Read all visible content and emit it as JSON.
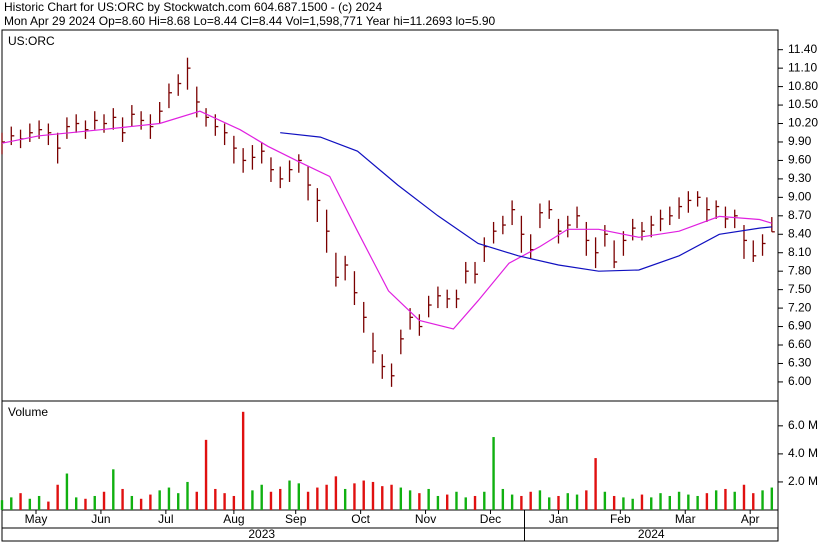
{
  "chart_data": {
    "type": "ohlc",
    "title": "Historic Chart for US:ORC by Stockwatch.com 604.687.1500 - (c) 2024",
    "subtitle": "Mon Apr 29 2024  Op=8.60  Hi=8.68  Lo=8.44  Cl=8.44  Vol=1,598,771  Year hi=11.2693  lo=5.90",
    "label": "US:ORC",
    "x": [
      0,
      3,
      6,
      9,
      12,
      15,
      18,
      21,
      24,
      27,
      30,
      33,
      36,
      39,
      42,
      45,
      48,
      51,
      54,
      57,
      60,
      63,
      66,
      69,
      72,
      75,
      78,
      81,
      84,
      87,
      90,
      93,
      96,
      99,
      102,
      105,
      108,
      111,
      114,
      117,
      120,
      123,
      126,
      129,
      132,
      135,
      138,
      141,
      144,
      147,
      150,
      153,
      156,
      159,
      162,
      165,
      168,
      171,
      174,
      177,
      180,
      183,
      186,
      189,
      192,
      195,
      198,
      201,
      204,
      207,
      210,
      213,
      216,
      219,
      222,
      225,
      228,
      231,
      234,
      237,
      240,
      243,
      246,
      249
    ],
    "xlim": [
      0,
      251
    ],
    "xticks": [
      {
        "value": 11,
        "label": "May"
      },
      {
        "value": 32,
        "label": "Jun"
      },
      {
        "value": 53,
        "label": "Jul"
      },
      {
        "value": 75,
        "label": "Aug"
      },
      {
        "value": 95,
        "label": "Sep"
      },
      {
        "value": 116,
        "label": "Oct"
      },
      {
        "value": 137,
        "label": "Nov"
      },
      {
        "value": 158,
        "label": "Dec"
      },
      {
        "value": 180,
        "label": "Jan"
      },
      {
        "value": 200,
        "label": "Feb"
      },
      {
        "value": 221,
        "label": "Mar"
      },
      {
        "value": 242,
        "label": "Apr"
      }
    ],
    "years": [
      {
        "value": 84,
        "label": "2023"
      },
      {
        "value": 210,
        "label": "2024"
      }
    ],
    "year_divider": 169,
    "ylim": [
      5.69,
      11.72
    ],
    "yticks": [
      {
        "value": 6.0,
        "label": "6.00"
      },
      {
        "value": 6.3,
        "label": "6.30"
      },
      {
        "value": 6.6,
        "label": "6.60"
      },
      {
        "value": 6.9,
        "label": "6.90"
      },
      {
        "value": 7.2,
        "label": "7.20"
      },
      {
        "value": 7.5,
        "label": "7.50"
      },
      {
        "value": 7.8,
        "label": "7.80"
      },
      {
        "value": 8.1,
        "label": "8.10"
      },
      {
        "value": 8.4,
        "label": "8.40"
      },
      {
        "value": 8.7,
        "label": "8.70"
      },
      {
        "value": 9.0,
        "label": "9.00"
      },
      {
        "value": 9.3,
        "label": "9.30"
      },
      {
        "value": 9.6,
        "label": "9.60"
      },
      {
        "value": 9.9,
        "label": "9.90"
      },
      {
        "value": 10.2,
        "label": "10.20"
      },
      {
        "value": 10.5,
        "label": "10.50"
      },
      {
        "value": 10.8,
        "label": "10.80"
      },
      {
        "value": 11.1,
        "label": "11.10"
      },
      {
        "value": 11.4,
        "label": "11.40"
      }
    ],
    "bar_color": "#7a0000",
    "high": [
      10.05,
      10.15,
      10.1,
      10.2,
      10.25,
      10.2,
      10.05,
      10.3,
      10.35,
      10.25,
      10.4,
      10.35,
      10.45,
      10.3,
      10.5,
      10.4,
      10.35,
      10.55,
      10.85,
      11.0,
      11.27,
      10.8,
      10.45,
      10.35,
      10.2,
      10.0,
      9.8,
      9.85,
      9.9,
      9.65,
      9.5,
      9.6,
      9.7,
      9.5,
      9.15,
      8.8,
      8.1,
      8.05,
      7.8,
      7.3,
      6.8,
      6.45,
      6.3,
      6.85,
      7.2,
      7.1,
      7.4,
      7.55,
      7.5,
      7.5,
      7.95,
      7.95,
      8.35,
      8.6,
      8.7,
      8.95,
      8.7,
      8.4,
      8.9,
      8.95,
      8.65,
      8.7,
      8.85,
      8.6,
      8.35,
      8.55,
      8.3,
      8.45,
      8.65,
      8.6,
      8.7,
      8.8,
      8.85,
      9.0,
      9.1,
      9.1,
      9.0,
      8.95,
      8.85,
      8.8,
      8.55,
      8.3,
      8.4,
      8.68
    ],
    "low": [
      9.7,
      9.85,
      9.8,
      9.9,
      9.95,
      9.85,
      9.55,
      9.95,
      10.05,
      9.95,
      10.1,
      10.05,
      10.1,
      9.9,
      10.15,
      10.1,
      9.95,
      10.2,
      10.45,
      10.65,
      10.75,
      10.3,
      10.15,
      10.0,
      9.85,
      9.55,
      9.4,
      9.45,
      9.55,
      9.25,
      9.15,
      9.25,
      9.4,
      8.95,
      8.6,
      8.1,
      7.55,
      7.65,
      7.25,
      6.8,
      6.3,
      6.05,
      5.92,
      6.45,
      6.85,
      6.75,
      7.05,
      7.2,
      7.2,
      7.2,
      7.6,
      7.6,
      7.95,
      8.25,
      8.4,
      8.55,
      8.1,
      8.0,
      8.5,
      8.65,
      8.25,
      8.35,
      8.5,
      8.05,
      7.85,
      8.2,
      7.85,
      8.05,
      8.3,
      8.3,
      8.35,
      8.45,
      8.55,
      8.65,
      8.75,
      8.85,
      8.6,
      8.65,
      8.5,
      8.5,
      8.0,
      7.95,
      8.05,
      8.44
    ],
    "close": [
      9.9,
      10.0,
      9.95,
      10.05,
      10.1,
      10.05,
      9.8,
      10.15,
      10.2,
      10.1,
      10.25,
      10.2,
      10.3,
      10.05,
      10.35,
      10.25,
      10.15,
      10.4,
      10.7,
      10.85,
      11.1,
      10.55,
      10.3,
      10.15,
      10.05,
      9.8,
      9.6,
      9.65,
      9.75,
      9.45,
      9.3,
      9.45,
      9.6,
      9.2,
      8.95,
      8.45,
      7.7,
      7.9,
      7.45,
      7.05,
      6.5,
      6.25,
      6.1,
      6.7,
      7.05,
      6.9,
      7.25,
      7.4,
      7.35,
      7.35,
      7.8,
      7.75,
      8.2,
      8.45,
      8.55,
      8.8,
      8.4,
      8.15,
      8.75,
      8.8,
      8.45,
      8.55,
      8.7,
      8.3,
      8.1,
      8.4,
      7.95,
      8.3,
      8.5,
      8.45,
      8.55,
      8.65,
      8.7,
      8.85,
      8.95,
      9.0,
      8.8,
      8.85,
      8.65,
      8.7,
      8.3,
      8.05,
      8.25,
      8.44
    ],
    "lines": [
      {
        "color": "#e020e0",
        "x": [
          0,
          12,
          32,
          51,
          64,
          77,
          86,
          96,
          106,
          115,
          125,
          135,
          146,
          154,
          164,
          174,
          183,
          193,
          206,
          219,
          232,
          245,
          249
        ],
        "values": [
          9.88,
          10.0,
          10.1,
          10.2,
          10.4,
          10.1,
          9.83,
          9.58,
          9.34,
          8.45,
          7.48,
          7.0,
          6.86,
          7.32,
          7.93,
          8.2,
          8.48,
          8.48,
          8.35,
          8.45,
          8.69,
          8.64,
          8.58
        ]
      },
      {
        "color": "#1010c0",
        "x": [
          90,
          103,
          115,
          128,
          141,
          154,
          167,
          180,
          193,
          206,
          219,
          232,
          245,
          249
        ],
        "values": [
          10.05,
          9.98,
          9.75,
          9.2,
          8.7,
          8.25,
          8.05,
          7.9,
          7.8,
          7.82,
          8.05,
          8.4,
          8.5,
          8.52
        ]
      }
    ],
    "volume": {
      "label": "Volume",
      "values": [
        0.7,
        0.9,
        1.2,
        0.8,
        1.0,
        0.6,
        1.8,
        2.6,
        0.9,
        0.8,
        1.0,
        1.3,
        2.9,
        1.5,
        1.0,
        0.8,
        1.1,
        1.4,
        1.6,
        1.2,
        2.0,
        1.3,
        5.0,
        1.5,
        1.2,
        1.0,
        7.0,
        1.4,
        1.8,
        1.3,
        1.5,
        2.1,
        1.9,
        1.3,
        1.6,
        1.8,
        2.4,
        1.5,
        1.9,
        2.1,
        2.0,
        1.7,
        1.8,
        1.6,
        1.4,
        1.2,
        1.5,
        1.0,
        1.1,
        1.3,
        0.9,
        1.0,
        1.3,
        5.2,
        1.5,
        1.1,
        1.0,
        1.3,
        1.4,
        0.9,
        1.0,
        1.2,
        1.1,
        1.4,
        3.7,
        1.3,
        1.0,
        0.9,
        0.8,
        1.1,
        0.9,
        1.2,
        1.0,
        1.3,
        1.1,
        1.0,
        1.2,
        1.4,
        1.5,
        1.3,
        1.8,
        1.2,
        1.4,
        1.6
      ],
      "ylim": [
        0,
        7.77
      ],
      "yticks": [
        {
          "value": 2,
          "label": "2.0 M"
        },
        {
          "value": 4,
          "label": "4.0 M"
        },
        {
          "value": 6,
          "label": "6.0 M"
        }
      ],
      "up_color": "#10b010",
      "down_color": "#e01010"
    }
  }
}
